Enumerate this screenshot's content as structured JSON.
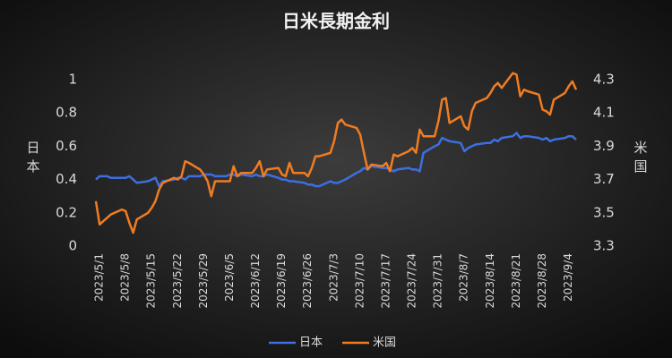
{
  "chart_data": {
    "type": "line",
    "title": "日米長期金利",
    "x": [
      "2023/5/1",
      "2023/5/2",
      "2023/5/3",
      "2023/5/4",
      "2023/5/5",
      "2023/5/8",
      "2023/5/9",
      "2023/5/10",
      "2023/5/11",
      "2023/5/12",
      "2023/5/15",
      "2023/5/16",
      "2023/5/17",
      "2023/5/18",
      "2023/5/19",
      "2023/5/22",
      "2023/5/23",
      "2023/5/24",
      "2023/5/25",
      "2023/5/26",
      "2023/5/29",
      "2023/5/30",
      "2023/5/31",
      "2023/6/1",
      "2023/6/2",
      "2023/6/5",
      "2023/6/6",
      "2023/6/7",
      "2023/6/8",
      "2023/6/9",
      "2023/6/12",
      "2023/6/13",
      "2023/6/14",
      "2023/6/15",
      "2023/6/16",
      "2023/6/19",
      "2023/6/20",
      "2023/6/21",
      "2023/6/22",
      "2023/6/23",
      "2023/6/26",
      "2023/6/27",
      "2023/6/28",
      "2023/6/29",
      "2023/6/30",
      "2023/7/3",
      "2023/7/4",
      "2023/7/5",
      "2023/7/6",
      "2023/7/7",
      "2023/7/10",
      "2023/7/11",
      "2023/7/12",
      "2023/7/13",
      "2023/7/14",
      "2023/7/17",
      "2023/7/18",
      "2023/7/19",
      "2023/7/20",
      "2023/7/21",
      "2023/7/24",
      "2023/7/25",
      "2023/7/26",
      "2023/7/27",
      "2023/7/28",
      "2023/7/31",
      "2023/8/1",
      "2023/8/2",
      "2023/8/3",
      "2023/8/4",
      "2023/8/7",
      "2023/8/8",
      "2023/8/9",
      "2023/8/10",
      "2023/8/11",
      "2023/8/14",
      "2023/8/15",
      "2023/8/16",
      "2023/8/17",
      "2023/8/18",
      "2023/8/21",
      "2023/8/22",
      "2023/8/23",
      "2023/8/24",
      "2023/8/25",
      "2023/8/28",
      "2023/8/29",
      "2023/8/30",
      "2023/8/31",
      "2023/9/1",
      "2023/9/4",
      "2023/9/5",
      "2023/9/6",
      "2023/9/7"
    ],
    "xlim": [
      "2023/5/1",
      "2023/9/7"
    ],
    "xticks": [
      "2023/5/1",
      "2023/5/8",
      "2023/5/15",
      "2023/5/22",
      "2023/5/29",
      "2023/6/5",
      "2023/6/12",
      "2023/6/19",
      "2023/6/26",
      "2023/7/3",
      "2023/7/10",
      "2023/7/17",
      "2023/7/24",
      "2023/7/31",
      "2023/8/7",
      "2023/8/14",
      "2023/8/21",
      "2023/8/28",
      "2023/9/4"
    ],
    "series": [
      {
        "name": "日本",
        "color": "#3d6fe0",
        "axis": "y",
        "values": [
          0.4,
          0.42,
          0.42,
          0.42,
          0.41,
          0.41,
          0.41,
          0.42,
          0.4,
          0.38,
          0.39,
          0.4,
          0.41,
          0.36,
          0.39,
          0.4,
          0.41,
          0.41,
          0.4,
          0.42,
          0.42,
          0.43,
          0.43,
          0.43,
          0.42,
          0.42,
          0.43,
          0.43,
          0.42,
          0.43,
          0.42,
          0.43,
          0.42,
          0.42,
          0.43,
          0.41,
          0.4,
          0.4,
          0.39,
          0.39,
          0.38,
          0.37,
          0.37,
          0.36,
          0.36,
          0.39,
          0.38,
          0.38,
          0.39,
          0.4,
          0.44,
          0.45,
          0.47,
          0.46,
          0.48,
          0.47,
          0.47,
          0.46,
          0.45,
          0.46,
          0.47,
          0.46,
          0.46,
          0.45,
          0.56,
          0.6,
          0.61,
          0.65,
          0.64,
          0.63,
          0.62,
          0.57,
          0.59,
          0.6,
          0.61,
          0.62,
          0.62,
          0.64,
          0.63,
          0.65,
          0.66,
          0.68,
          0.65,
          0.66,
          0.66,
          0.65,
          0.64,
          0.65,
          0.63,
          0.64,
          0.65,
          0.66,
          0.66,
          0.64
        ]
      },
      {
        "name": "米国",
        "color": "#f07c22",
        "axis": "y2",
        "values": [
          3.57,
          3.43,
          3.45,
          3.47,
          3.49,
          3.52,
          3.51,
          3.44,
          3.38,
          3.46,
          3.5,
          3.53,
          3.57,
          3.64,
          3.68,
          3.71,
          3.7,
          3.72,
          3.81,
          3.8,
          3.76,
          3.73,
          3.69,
          3.6,
          3.69,
          3.69,
          3.69,
          3.78,
          3.72,
          3.74,
          3.74,
          3.77,
          3.81,
          3.72,
          3.76,
          3.77,
          3.73,
          3.72,
          3.8,
          3.74,
          3.74,
          3.72,
          3.77,
          3.84,
          3.84,
          3.86,
          3.93,
          4.04,
          4.06,
          4.03,
          4.01,
          3.97,
          3.86,
          3.76,
          3.79,
          3.78,
          3.8,
          3.75,
          3.85,
          3.84,
          3.87,
          3.89,
          3.86,
          4.0,
          3.96,
          3.96,
          4.05,
          4.18,
          4.19,
          4.04,
          4.08,
          4.02,
          4.0,
          4.11,
          4.16,
          4.19,
          4.22,
          4.26,
          4.28,
          4.25,
          4.34,
          4.33,
          4.2,
          4.24,
          4.23,
          4.21,
          4.12,
          4.11,
          4.09,
          4.18,
          4.22,
          4.26,
          4.29,
          4.24
        ]
      }
    ],
    "ylim": [
      0,
      1
    ],
    "yticks": [
      0,
      0.2,
      0.4,
      0.6,
      0.8,
      1
    ],
    "y2lim": [
      3.3,
      4.3
    ],
    "y2ticks": [
      3.3,
      3.5,
      3.7,
      3.9,
      4.1,
      4.3
    ],
    "ylabel": "日本",
    "y2label": "米国",
    "legend": "bottom"
  }
}
